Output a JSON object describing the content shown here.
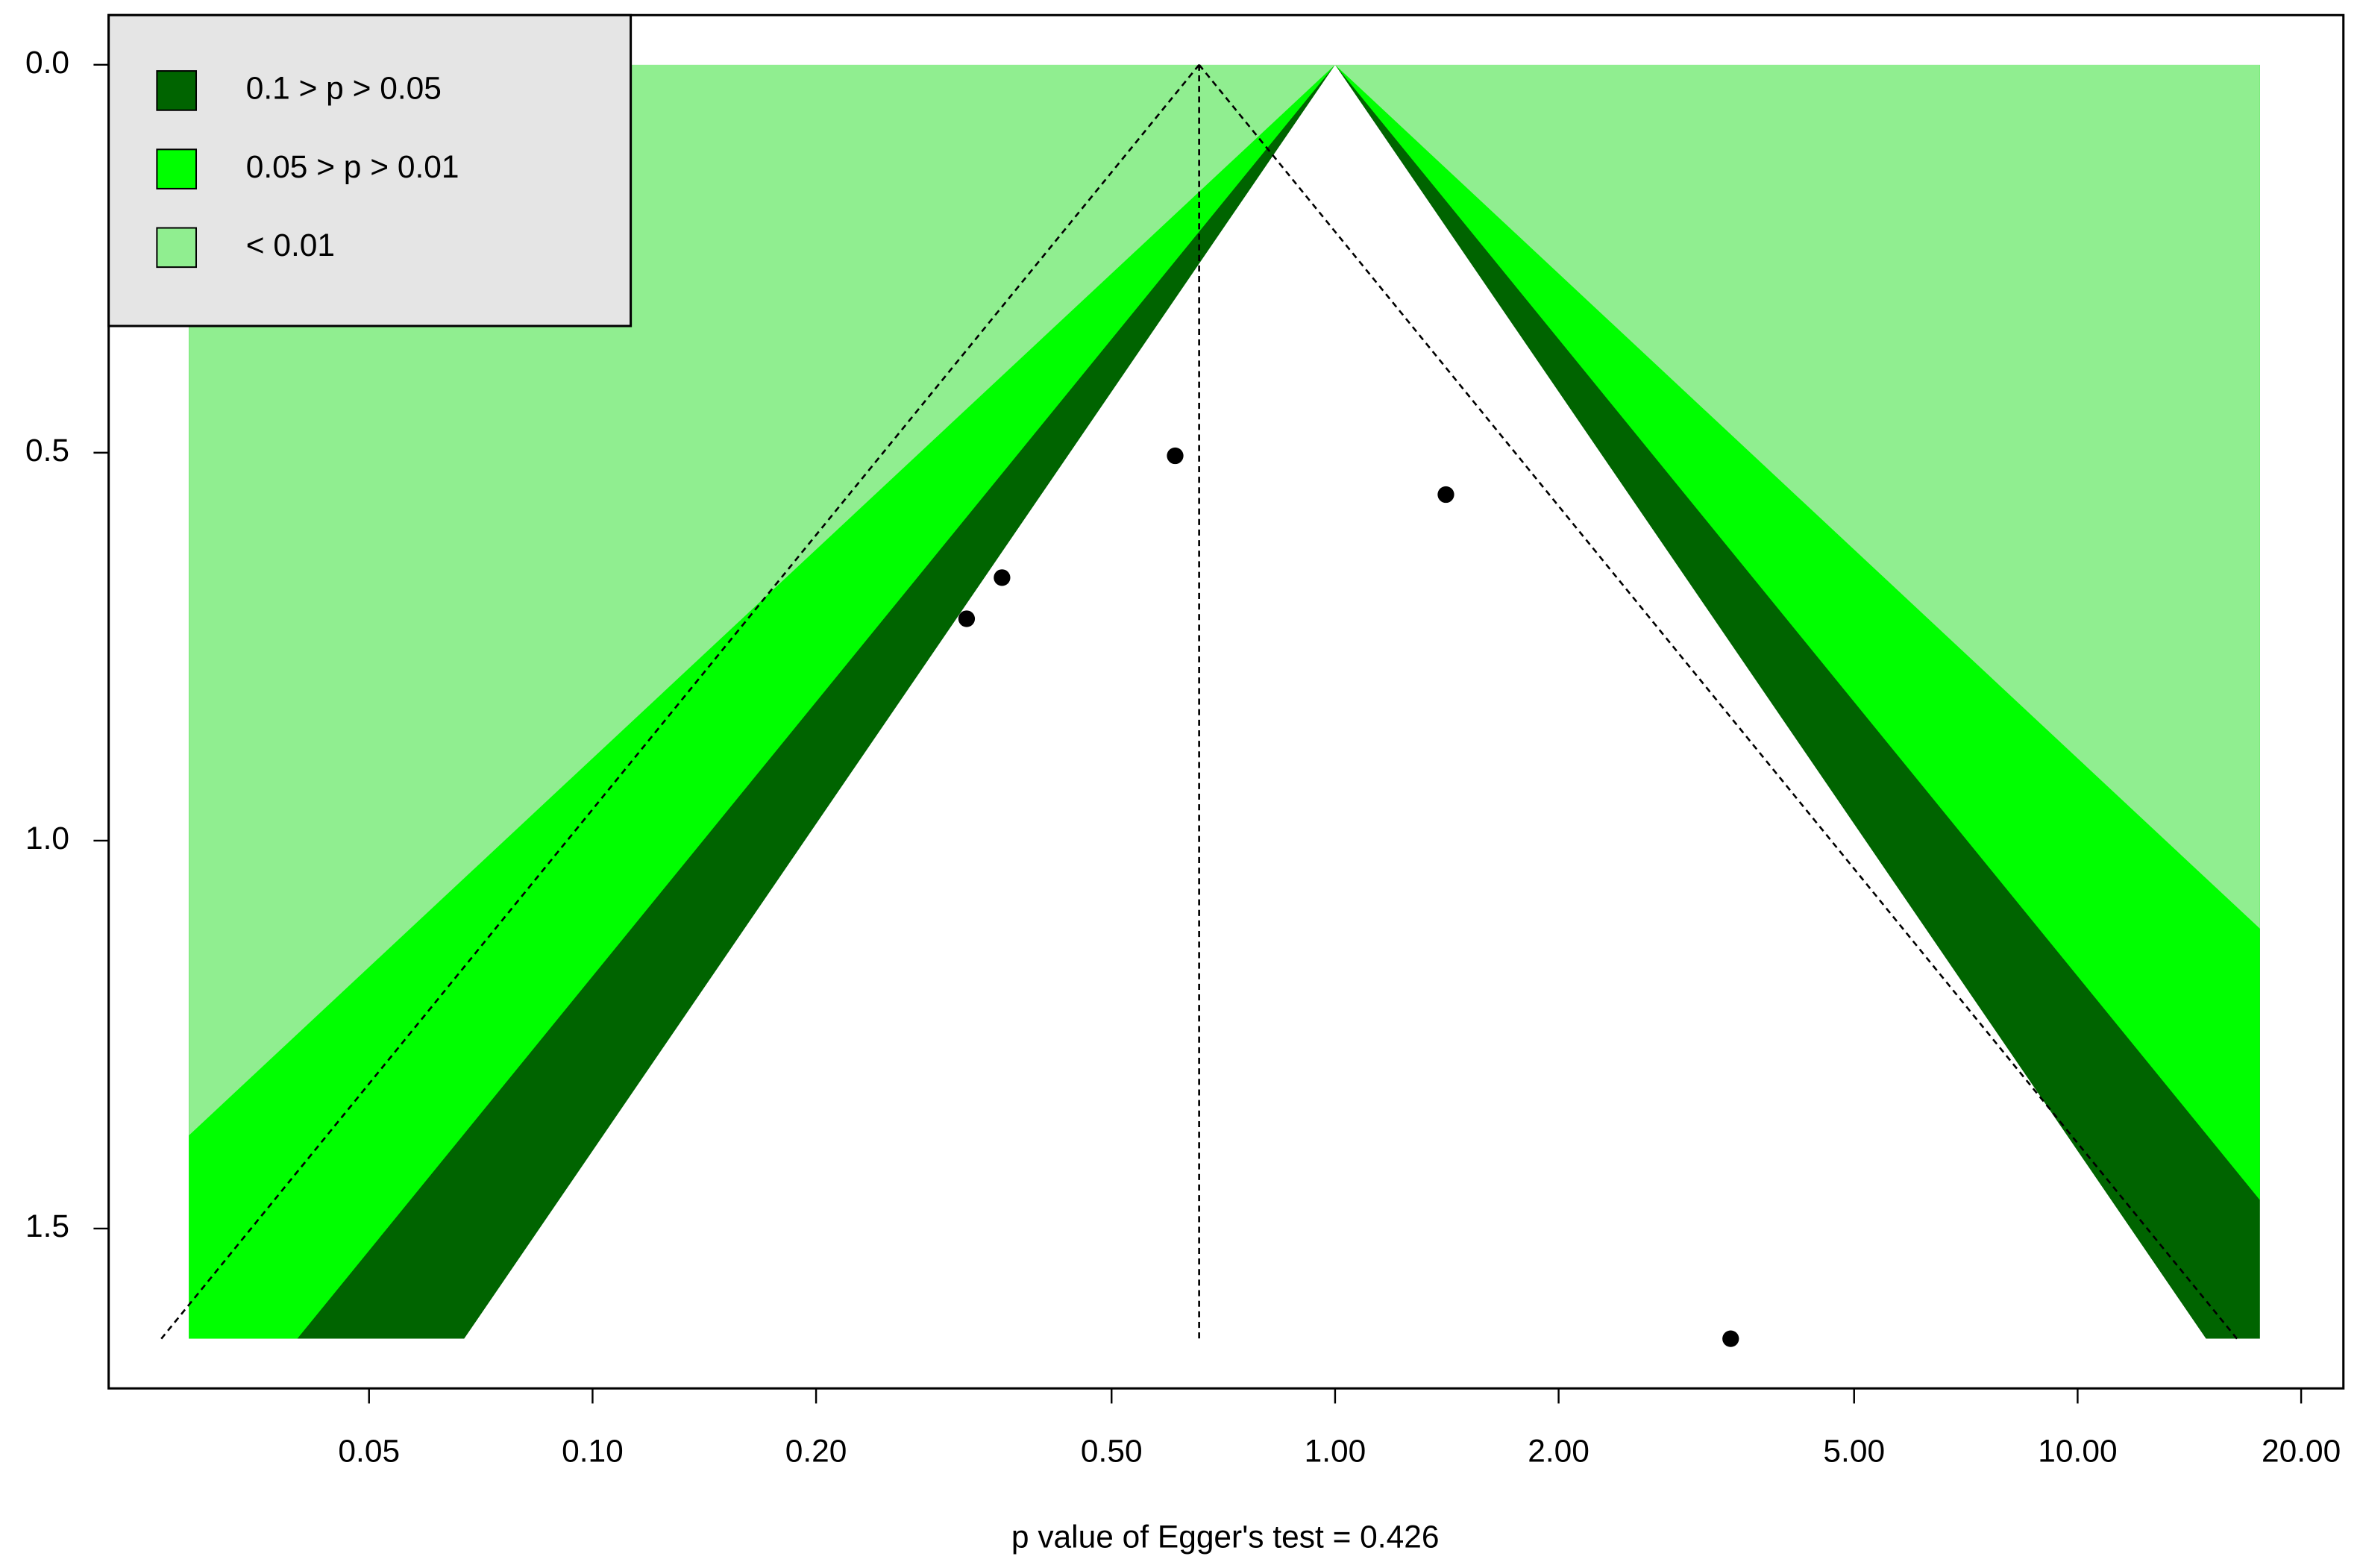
{
  "chart_data": {
    "type": "funnel",
    "x_label": "p value of Egger's test = 0.426",
    "x_log": true,
    "xlim": [
      0.0223,
      22.8
    ],
    "ylim": [
      -0.064,
      1.706
    ],
    "y_inverted": true,
    "xticks": [
      0.05,
      {
        "value": 0.1,
        "label": "0.10"
      },
      {
        "value": 0.2,
        "label": "0.20"
      },
      {
        "value": 0.5,
        "label": "0.50"
      },
      {
        "value": 1,
        "label": "1.00"
      },
      {
        "value": 2,
        "label": "2.00"
      },
      {
        "value": 5,
        "label": "5.00"
      },
      {
        "value": 10,
        "label": "10.00"
      },
      {
        "value": 20,
        "label": "20.00"
      }
    ],
    "yticks": [
      {
        "value": 0,
        "label": "0.0"
      },
      0.5,
      {
        "value": 1,
        "label": "1.0"
      },
      1.5
    ],
    "funnel_center": 1,
    "shade_xlim": [
      0.0286,
      17.6
    ],
    "contours": [
      {
        "name": "0.1 > p > 0.05",
        "p": 0.1,
        "color": "#006400"
      },
      {
        "name": "0.05 > p > 0.01",
        "p": 0.05,
        "color": "#00ff00"
      },
      {
        "name": "< 0.01",
        "p": 0.01,
        "color": "#90ee90"
      }
    ],
    "summary_estimate": 0.656,
    "points": {
      "color": "#000000",
      "x": [
        0.609,
        1.41,
        0.356,
        0.319,
        3.41
      ],
      "values": [
        0.504,
        0.554,
        0.661,
        0.714,
        1.642
      ]
    },
    "legend": "top-left"
  }
}
